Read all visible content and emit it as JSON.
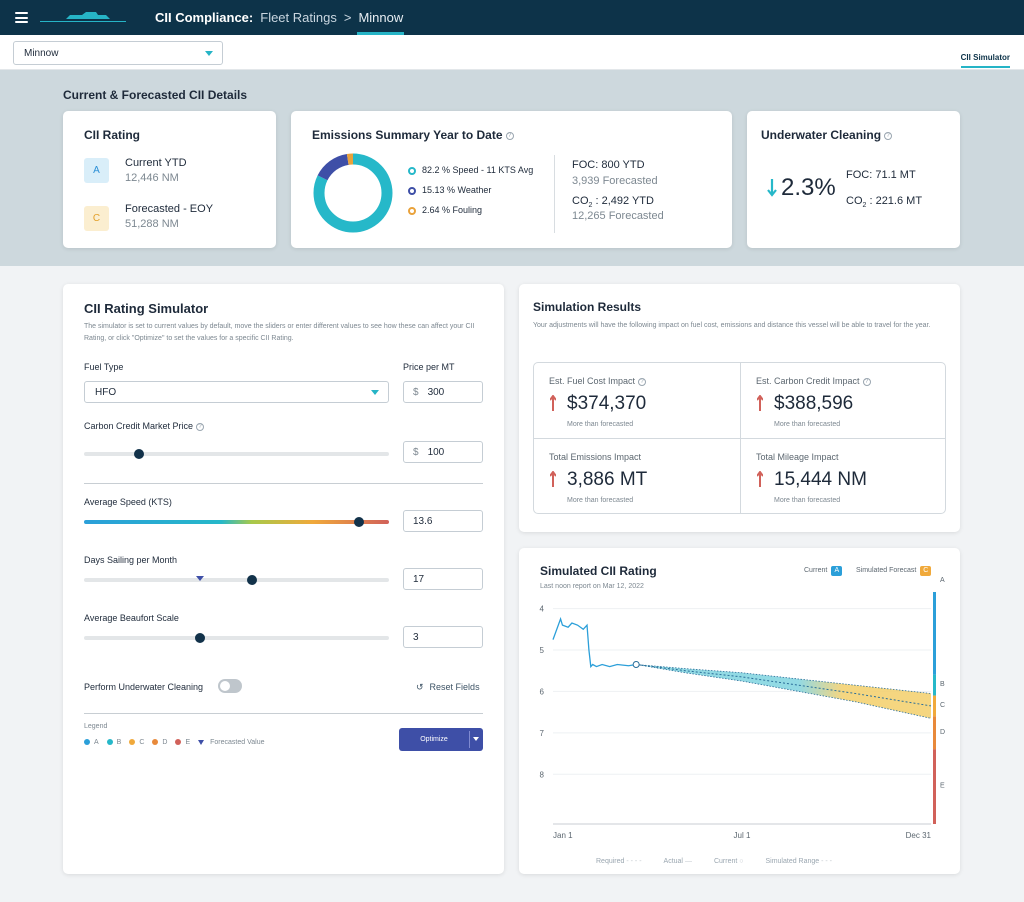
{
  "header": {
    "crumb_app": "CII Compliance:",
    "crumb_section": "Fleet Ratings",
    "crumb_separator": ">",
    "crumb_vessel": "Minnow"
  },
  "subbar": {
    "vessel_select": "Minnow",
    "tab": "CII Simulator"
  },
  "section_title": "Current & Forecasted CII Details",
  "cii_rating": {
    "title": "CII Rating",
    "current": {
      "badge": "A",
      "label": "Current YTD",
      "value": "12,446 NM"
    },
    "forecast": {
      "badge": "C",
      "label": "Forecasted - EOY",
      "value": "51,288 NM"
    }
  },
  "emissions": {
    "title": "Emissions Summary Year to Date",
    "legend": [
      {
        "label": "82.2 % Speed - 11 KTS Avg",
        "color": "#26b8c9"
      },
      {
        "label": "15.13 % Weather",
        "color": "#3e4fa7"
      },
      {
        "label": "2.64 % Fouling",
        "color": "#e9a23b"
      }
    ],
    "donut": [
      82.2,
      15.13,
      2.64
    ],
    "foc_label": "FOC: 800 YTD",
    "foc_forecast": "3,939 Forecasted",
    "co2_label_prefix": "CO",
    "co2_label_sub": "2",
    "co2_label_value": " : 2,492 YTD",
    "co2_forecast": "12,265 Forecasted"
  },
  "underwater": {
    "title": "Underwater Cleaning",
    "pct": "2.3%",
    "foc": "FOC: 71.1 MT",
    "co2_prefix": "CO",
    "co2_sub": "2",
    "co2_value": " : 221.6 MT"
  },
  "simulator": {
    "title": "CII Rating Simulator",
    "description": "The simulator is set to current values by default, move the sliders or enter different values to see how these can affect your CII Rating, or click \"Optimize\" to set the values for a specific CII Rating.",
    "fuel_type_label": "Fuel Type",
    "fuel_type_value": "HFO",
    "price_label": "Price per MT",
    "currency": "$",
    "price_value": "300",
    "carbon_label": "Carbon Credit Market Price",
    "carbon_value": "100",
    "carbon_slider": 0.18,
    "speed_label": "Average Speed (KTS)",
    "speed_value": "13.6",
    "speed_slider": 0.9,
    "days_label": "Days Sailing per Month",
    "days_value": "17",
    "days_slider": 0.55,
    "days_forecast_marker": 0.38,
    "beaufort_label": "Average Beaufort Scale",
    "beaufort_value": "3",
    "beaufort_slider": 0.38,
    "cleaning_label": "Perform Underwater Cleaning",
    "reset_label": "Reset Fields",
    "legend_title": "Legend",
    "legend": [
      {
        "label": "A",
        "color": "#2b9fd9"
      },
      {
        "label": "B",
        "color": "#26b8c9"
      },
      {
        "label": "C",
        "color": "#f0a93b"
      },
      {
        "label": "D",
        "color": "#e8893a"
      },
      {
        "label": "E",
        "color": "#d1615a"
      }
    ],
    "legend_forecast": "Forecasted Value",
    "optimize_label": "Optimize"
  },
  "results": {
    "title": "Simulation Results",
    "description": "Your adjustments will have the following impact on fuel cost, emissions and distance this vessel will be able to travel for the year.",
    "metrics": [
      {
        "title": "Est. Fuel Cost Impact",
        "value": "$374,370",
        "sub": "More than forecasted",
        "help": true
      },
      {
        "title": "Est. Carbon Credit Impact",
        "value": "$388,596",
        "sub": "More than forecasted",
        "help": true
      },
      {
        "title": "Total Emissions Impact",
        "value": "3,886 MT",
        "sub": "More than forecasted",
        "help": false
      },
      {
        "title": "Total Mileage Impact",
        "value": "15,444 NM",
        "sub": "More than forecasted",
        "help": false
      }
    ]
  },
  "sim_chart": {
    "title": "Simulated CII Rating",
    "subtitle": "Last noon report on Mar 12, 2022",
    "legend_current": "Current",
    "legend_current_badge": "A",
    "legend_sim": "Simulated Forecast",
    "legend_sim_badge": "C",
    "bottom_legend": [
      "Required",
      "Actual",
      "Current",
      "Simulated Range"
    ]
  },
  "chart_data": {
    "type": "line",
    "title": "Simulated CII Rating",
    "x_ticks": [
      "Jan 1",
      "Jul 1",
      "Dec 31"
    ],
    "y_ticks": [
      "4",
      "5",
      "6",
      "7",
      "8"
    ],
    "ylim": [
      3.6,
      9.2
    ],
    "rating_bands": [
      {
        "label": "A",
        "from": 3.6,
        "to": 5.6,
        "color": "#2b9fd9"
      },
      {
        "label": "B",
        "from": 5.6,
        "to": 6.1,
        "color": "#26b8c9"
      },
      {
        "label": "C",
        "from": 6.1,
        "to": 6.6,
        "color": "#f0a93b"
      },
      {
        "label": "D",
        "from": 6.6,
        "to": 7.4,
        "color": "#e8893a"
      },
      {
        "label": "E",
        "from": 7.4,
        "to": 9.2,
        "color": "#d1615a"
      }
    ],
    "actual": {
      "name": "Actual",
      "x": [
        0,
        0.02,
        0.025,
        0.04,
        0.05,
        0.065,
        0.08,
        0.09,
        0.095,
        0.1,
        0.105,
        0.115,
        0.13,
        0.15,
        0.17,
        0.2,
        0.22
      ],
      "y": [
        4.75,
        4.25,
        4.4,
        4.45,
        4.35,
        4.4,
        4.5,
        4.4,
        5.0,
        5.4,
        5.35,
        5.4,
        5.35,
        5.4,
        5.35,
        5.38,
        5.35
      ]
    },
    "current_point": {
      "x": 0.22,
      "y": 5.35
    },
    "forecast": {
      "name": "Simulated Forecast",
      "x": [
        0.22,
        0.35,
        0.5,
        0.65,
        0.8,
        0.9,
        1.0
      ],
      "y": [
        5.35,
        5.5,
        5.65,
        5.85,
        6.05,
        6.2,
        6.35
      ]
    },
    "range_low": [
      5.35,
      5.45,
      5.55,
      5.7,
      5.85,
      5.95,
      6.05
    ],
    "range_high": [
      5.35,
      5.55,
      5.75,
      6.0,
      6.25,
      6.45,
      6.65
    ]
  }
}
